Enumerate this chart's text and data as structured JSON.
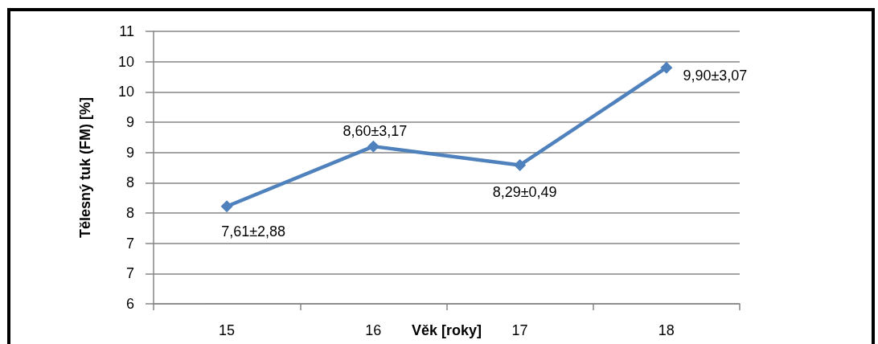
{
  "chart_data": {
    "type": "line",
    "xlabel": "Věk [roky]",
    "ylabel": "Tělesný tuk (FM) [%]",
    "categories": [
      "15",
      "16",
      "17",
      "18"
    ],
    "series": [
      {
        "color": "#4f81bd",
        "values": [
          7.61,
          8.6,
          8.29,
          9.9
        ],
        "value_labels": [
          "7,61±2,88",
          "8,60±3,17",
          "8,29±0,49",
          "9,90±3,07"
        ]
      }
    ],
    "ylim": [
      6,
      10.5
    ],
    "yticks": [
      6,
      {
        "value": 6.5,
        "label": "7"
      },
      7,
      {
        "value": 7.5,
        "label": "8"
      },
      8,
      {
        "value": 8.5,
        "label": "9"
      },
      9,
      {
        "value": 9.5,
        "label": "10"
      },
      10,
      {
        "value": 10.5,
        "label": "11"
      }
    ],
    "grid": "y",
    "marker": "diamond",
    "line_style": "solid"
  }
}
